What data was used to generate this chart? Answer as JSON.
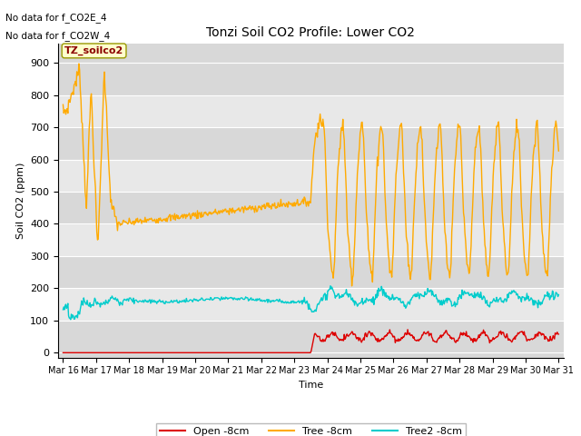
{
  "title": "Tonzi Soil CO2 Profile: Lower CO2",
  "xlabel": "Time",
  "ylabel": "Soil CO2 (ppm)",
  "ylim": [
    -15,
    960
  ],
  "yticks": [
    0,
    100,
    200,
    300,
    400,
    500,
    600,
    700,
    800,
    900
  ],
  "annotations": [
    "No data for f_CO2E_4",
    "No data for f_CO2W_4"
  ],
  "cursor_label": "TZ_soilco2",
  "background_color": "#ffffff",
  "plot_bg_color": "#d8d8d8",
  "alt_band_color": "#e8e8e8",
  "grid_color": "#ffffff",
  "open_color": "#dd0000",
  "tree_color": "#ffaa00",
  "tree2_color": "#00cccc",
  "legend_labels": [
    "Open -8cm",
    "Tree -8cm",
    "Tree2 -8cm"
  ],
  "xticklabels": [
    "Mar 16",
    "Mar 17",
    "Mar 18",
    "Mar 19",
    "Mar 20",
    "Mar 21",
    "Mar 22",
    "Mar 23",
    "Mar 24",
    "Mar 25",
    "Mar 26",
    "Mar 27",
    "Mar 28",
    "Mar 29",
    "Mar 30",
    "Mar 31"
  ],
  "figsize": [
    6.4,
    4.8
  ],
  "dpi": 100
}
